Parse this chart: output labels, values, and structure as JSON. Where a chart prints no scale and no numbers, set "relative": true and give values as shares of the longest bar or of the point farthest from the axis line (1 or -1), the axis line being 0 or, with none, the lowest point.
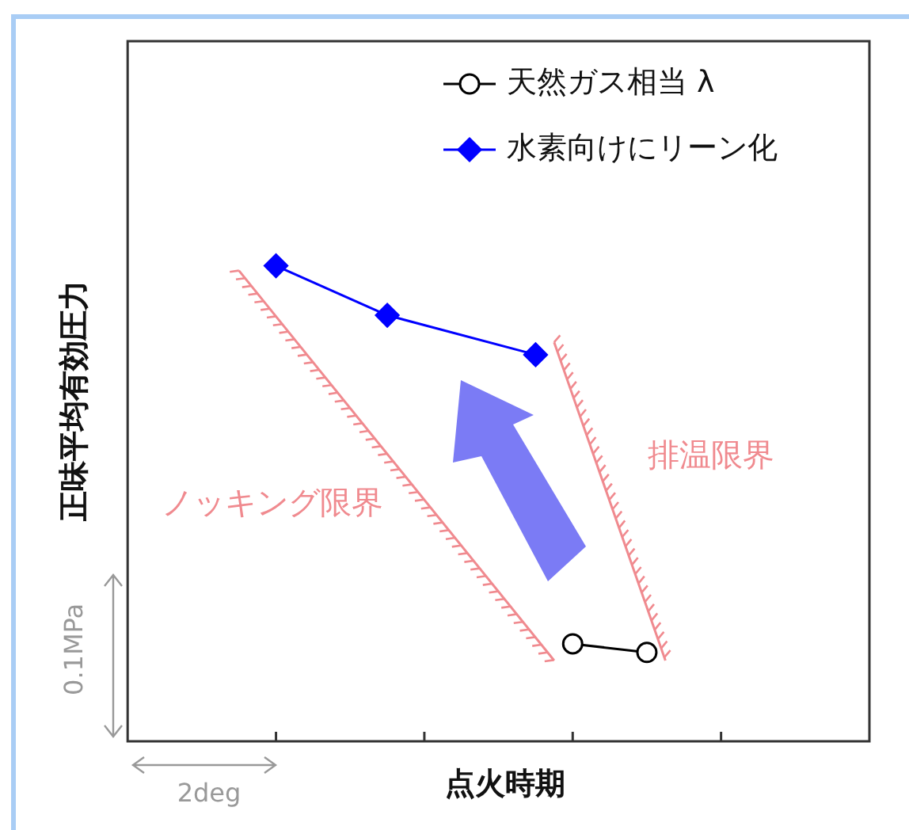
{
  "chart_data": {
    "type": "line",
    "relative": true,
    "xlabel": "点火時期",
    "ylabel": "正味平均有効圧力",
    "categories": [
      null,
      null,
      null,
      null,
      null,
      null,
      null,
      null,
      null,
      null,
      null,
      null,
      null,
      null,
      null,
      null,
      null,
      null,
      null,
      null,
      null,
      null,
      null,
      null,
      null,
      null,
      null,
      null,
      null,
      null,
      null,
      null,
      null,
      null,
      null,
      null,
      null,
      null,
      null,
      null,
      null
    ],
    "legend": "top right",
    "series": [
      {
        "name": "天然ガス相当 λ",
        "color": "#000000",
        "marker": "circle",
        "values": [
          null,
          null,
          null,
          null,
          null,
          null,
          null,
          null,
          null,
          null,
          null,
          null,
          null,
          null,
          null,
          null,
          null,
          null,
          null,
          null,
          null,
          null,
          null,
          null,
          0.205,
          null,
          null,
          null,
          0.187,
          null,
          null,
          null,
          null,
          null,
          null,
          null,
          null,
          null,
          null,
          null,
          null
        ]
      },
      {
        "name": "水素向けにリーン化",
        "color": "#0000ff",
        "marker": "diamond",
        "values": [
          null,
          null,
          null,
          null,
          null,
          null,
          null,
          null,
          1,
          null,
          null,
          null,
          null,
          null,
          0.896,
          null,
          null,
          null,
          null,
          null,
          null,
          null,
          0.813,
          null,
          null,
          null,
          null,
          null,
          null,
          null,
          null,
          null,
          null,
          null,
          null,
          null,
          null,
          null,
          null,
          null,
          null
        ]
      },
      {
        "name": "ノッキング限界",
        "color": "#f08a8f",
        "marker": "none",
        "values": [
          null,
          null,
          null,
          null,
          null,
          null,
          0.99,
          null,
          null,
          null,
          null,
          null,
          null,
          null,
          null,
          null,
          null,
          null,
          null,
          null,
          null,
          null,
          null,
          0.17,
          null,
          null,
          null,
          null,
          null,
          null,
          null,
          null,
          null,
          null,
          null,
          null,
          null,
          null,
          null,
          null,
          null
        ]
      },
      {
        "name": "排温限界",
        "color": "#f08a8f",
        "marker": "none",
        "values": [
          null,
          null,
          null,
          null,
          null,
          null,
          null,
          null,
          null,
          null,
          null,
          null,
          null,
          null,
          null,
          null,
          null,
          null,
          null,
          null,
          null,
          null,
          null,
          0.839,
          null,
          null,
          null,
          null,
          null,
          0.17,
          null,
          null,
          null,
          null,
          null,
          null,
          null,
          null,
          null,
          null,
          null
        ]
      }
    ],
    "annotations": [
      "0.1MPa",
      "2deg"
    ]
  }
}
